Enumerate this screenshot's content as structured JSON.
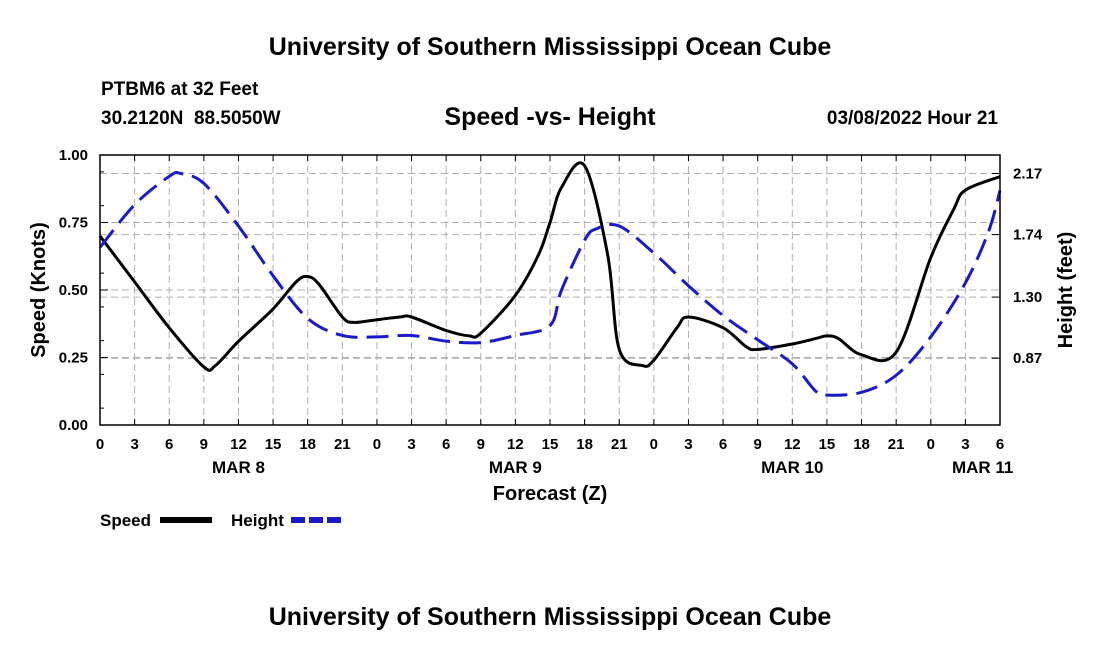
{
  "header": {
    "title": "University of Southern Mississippi Ocean Cube",
    "station": "PTBM6 at 32 Feet",
    "coords": "30.2120N  88.5050W",
    "chart_title": "Speed -vs- Height",
    "datetime": "03/08/2022 Hour 21"
  },
  "footer": {
    "title": "University of Southern Mississippi Ocean Cube"
  },
  "legend": {
    "speed_label": "Speed",
    "height_label": "Height"
  },
  "colors": {
    "speed": "#000000",
    "height": "#1a1acc",
    "grid": "#b0b0b0"
  },
  "chart_data": {
    "type": "line",
    "title": "Speed -vs- Height",
    "xlabel": "Forecast (Z)",
    "ylabel": "Speed (Knots)",
    "y2label": "Height (feet)",
    "x_range_hours": [
      0,
      78
    ],
    "ylim": [
      0,
      1.0
    ],
    "y2lim": [
      0.4,
      2.3
    ],
    "x_tick_labels": [
      "0",
      "3",
      "6",
      "9",
      "12",
      "15",
      "18",
      "21",
      "0",
      "3",
      "6",
      "9",
      "12",
      "15",
      "18",
      "21",
      "0",
      "3",
      "6",
      "9",
      "12",
      "15",
      "18",
      "21",
      "0",
      "3",
      "6"
    ],
    "date_labels": [
      {
        "label": "MAR 8",
        "hour": 12
      },
      {
        "label": "MAR 9",
        "hour": 36
      },
      {
        "label": "MAR 10",
        "hour": 60
      },
      {
        "label": "MAR 11",
        "hour": 76.5
      }
    ],
    "y_ticks": [
      {
        "value": 0,
        "label": "0.00"
      },
      {
        "value": 0.25,
        "label": "0.25"
      },
      {
        "value": 0.5,
        "label": "0.50"
      },
      {
        "value": 0.75,
        "label": "0.75"
      },
      {
        "value": 1.0,
        "label": "1.00"
      }
    ],
    "y2_ticks": [
      {
        "value": 0.87,
        "label": "0.87"
      },
      {
        "value": 1.3,
        "label": "1.30"
      },
      {
        "value": 1.74,
        "label": "1.74"
      },
      {
        "value": 2.17,
        "label": "2.17"
      }
    ],
    "series": [
      {
        "name": "Speed",
        "axis": "left",
        "style": "solid",
        "x": [
          0,
          3,
          6,
          9,
          10,
          12,
          15,
          17,
          18,
          19,
          21,
          22,
          24,
          26,
          27,
          30,
          32,
          33,
          36,
          38,
          39,
          40,
          42,
          44,
          45,
          47,
          48,
          50,
          51,
          54,
          56,
          57,
          60,
          62,
          63,
          64,
          66,
          69,
          72,
          74,
          75,
          78
        ],
        "values": [
          0.7,
          0.53,
          0.36,
          0.215,
          0.22,
          0.31,
          0.43,
          0.53,
          0.55,
          0.52,
          0.4,
          0.38,
          0.39,
          0.4,
          0.4,
          0.35,
          0.33,
          0.34,
          0.48,
          0.63,
          0.75,
          0.88,
          0.96,
          0.63,
          0.28,
          0.22,
          0.24,
          0.36,
          0.4,
          0.36,
          0.29,
          0.28,
          0.3,
          0.32,
          0.33,
          0.32,
          0.26,
          0.27,
          0.62,
          0.8,
          0.87,
          0.92
        ]
      },
      {
        "name": "Height",
        "axis": "right",
        "style": "dashed",
        "x": [
          0,
          3,
          6,
          7,
          9,
          12,
          15,
          18,
          21,
          24,
          27,
          30,
          33,
          36,
          39,
          40,
          42,
          43,
          45,
          48,
          51,
          54,
          57,
          60,
          62,
          63,
          66,
          69,
          72,
          75,
          77,
          78
        ],
        "values": [
          1.65,
          1.95,
          2.15,
          2.17,
          2.1,
          1.8,
          1.45,
          1.15,
          1.03,
          1.02,
          1.03,
          0.99,
          0.98,
          1.03,
          1.1,
          1.35,
          1.7,
          1.78,
          1.8,
          1.61,
          1.38,
          1.17,
          1.0,
          0.83,
          0.64,
          0.61,
          0.63,
          0.75,
          1.02,
          1.4,
          1.76,
          2.05
        ]
      }
    ]
  }
}
